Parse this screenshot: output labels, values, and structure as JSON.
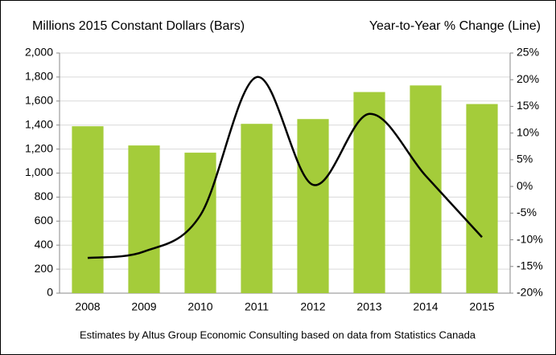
{
  "chart_data": {
    "type": "bar",
    "ylabel": "Millions 2015 Constant Dollars (Bars)",
    "y2label": "Year-to-Year % Change (Line)",
    "note": "Estimates by Altus Group Economic Consulting based on data from Statistics Canada",
    "categories": [
      "2008",
      "2009",
      "2010",
      "2011",
      "2012",
      "2013",
      "2014",
      "2015"
    ],
    "series": [
      {
        "type": "bar",
        "color": "#a4cc3a",
        "values": [
          1390,
          1230,
          1170,
          1410,
          1450,
          1675,
          1730,
          1575
        ]
      },
      {
        "type": "line",
        "axis": "y2",
        "color": "#000000",
        "values": [
          -13.4,
          -12.2,
          -5.4,
          20.5,
          0.3,
          13.6,
          2,
          -9.5
        ]
      }
    ],
    "ylim": [
      0,
      2000
    ],
    "yticks": [
      0,
      200,
      400,
      600,
      800,
      {
        "value": 1000,
        "label": "1,000"
      },
      {
        "value": 1200,
        "label": "1,200"
      },
      {
        "value": 1400,
        "label": "1,400"
      },
      {
        "value": 1600,
        "label": "1,600"
      },
      {
        "value": 1800,
        "label": "1,800"
      },
      {
        "value": 2000,
        "label": "2,000"
      }
    ],
    "y2lim": [
      -20,
      25
    ],
    "y2ticks": [
      {
        "value": -20,
        "label": "-20%"
      },
      {
        "value": -15,
        "label": "-15%"
      },
      {
        "value": -10,
        "label": "-10%"
      },
      {
        "value": -5,
        "label": "-5%"
      },
      {
        "value": 0,
        "label": "0%"
      },
      {
        "value": 5,
        "label": "5%"
      },
      {
        "value": 10,
        "label": "10%"
      },
      {
        "value": 15,
        "label": "15%"
      },
      {
        "value": 20,
        "label": "20%"
      },
      {
        "value": 25,
        "label": "25%"
      }
    ],
    "grid": true
  }
}
